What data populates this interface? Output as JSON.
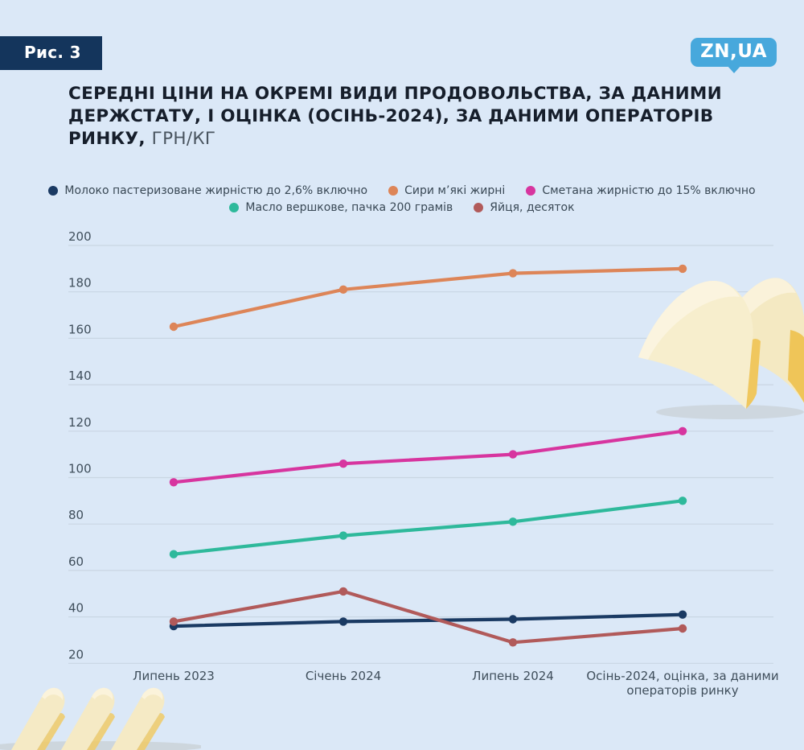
{
  "header": {
    "figure_label": "Рис. 3",
    "logo_text": "ZN,UA",
    "title_lines": [
      "СЕРЕДНІ ЦІНИ НА ОКРЕМІ ВИДИ ПРОДОВОЛЬСТВА, ЗА ДАНИМИ",
      "ДЕРЖСТАТУ, І ОЦІНКА (ОСІНЬ-2024), ЗА ДАНИМИ ОПЕРАТОРІВ"
    ],
    "title_last_bold": "РИНКУ,",
    "title_unit": "ГРН/КГ"
  },
  "colors": {
    "background": "#DBE8F7",
    "badge": "#14355C",
    "logo": "#47A8DC",
    "gridline": "#C9D6E3",
    "axis_text": "#3F4E5B",
    "title_text": "#161E2B"
  },
  "chart_data": {
    "type": "line",
    "title": "СЕРЕДНІ ЦІНИ НА ОКРЕМІ ВИДИ ПРОДОВОЛЬСТВА, ЗА ДАНИМИ ДЕРЖСТАТУ, І ОЦІНКА (ОСІНЬ-2024), ЗА ДАНИМИ ОПЕРАТОРІВ РИНКУ, ГРН/КГ",
    "xlabel": "",
    "ylabel": "",
    "categories": [
      "Липень 2023",
      "Січень 2024",
      "Липень 2024",
      "Осінь-2024, оцінка, за даними операторів ринку"
    ],
    "series": [
      {
        "name": "Молоко пастеризоване жирністю до 2,6% включно",
        "color": "#1A3A63",
        "values": [
          36,
          38,
          39,
          41
        ]
      },
      {
        "name": "Сири м’які жирні",
        "color": "#DD8558",
        "values": [
          165,
          181,
          188,
          190
        ]
      },
      {
        "name": "Сметана жирністю до 15% включно",
        "color": "#D7359F",
        "values": [
          98,
          106,
          110,
          120
        ]
      },
      {
        "name": "Масло вершкове, пачка 200 грамів",
        "color": "#2EB99B",
        "values": [
          67,
          75,
          81,
          90
        ]
      },
      {
        "name": "Яйця, десяток",
        "color": "#B15A5A",
        "values": [
          38,
          51,
          29,
          35
        ]
      }
    ],
    "legend_rows": [
      [
        0,
        1,
        2
      ],
      [
        3,
        4
      ]
    ],
    "legend_position": "top",
    "grid": true,
    "ylim": [
      20,
      200
    ],
    "yticks": [
      20,
      40,
      60,
      80,
      100,
      120,
      140,
      160,
      180,
      200
    ]
  }
}
